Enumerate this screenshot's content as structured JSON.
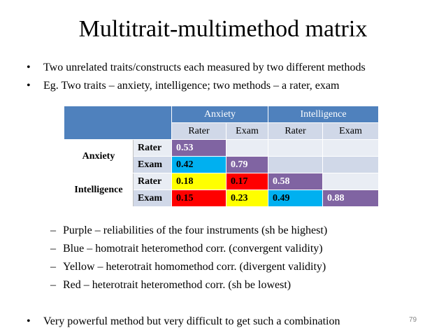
{
  "title": "Multitrait-multimethod matrix",
  "bullets": [
    "Two unrelated traits/constructs each measured by two different methods",
    "Eg. Two traits – anxiety, intelligence; two methods – a rater, exam",
    "Very powerful method but very difficult to get such a combination"
  ],
  "bullet_symbol": "•",
  "table": {
    "col_traits": [
      "Anxiety",
      "Intelligence"
    ],
    "col_methods": [
      "Rater",
      "Exam",
      "Rater",
      "Exam"
    ],
    "row_traits": [
      "Anxiety",
      "Intelligence"
    ],
    "row_methods": [
      "Rater",
      "Exam",
      "Rater",
      "Exam"
    ],
    "cells": [
      [
        "0.53",
        "",
        "",
        ""
      ],
      [
        "0.42",
        "0.79",
        "",
        ""
      ],
      [
        "0.18",
        "0.17",
        "0.58",
        ""
      ],
      [
        "0.15",
        "0.23",
        "0.49",
        "0.88"
      ]
    ],
    "cell_colors": [
      [
        "purple",
        "empty",
        "empty",
        "empty"
      ],
      [
        "blue",
        "purple",
        "empty",
        "empty"
      ],
      [
        "yellow",
        "red",
        "purple",
        "empty"
      ],
      [
        "red",
        "yellow",
        "blue",
        "purple"
      ]
    ]
  },
  "colors": {
    "purple": "#8064a2",
    "blue": "#00b0f0",
    "yellow": "#ffff00",
    "red": "#ff0000",
    "header": "#4f81bd"
  },
  "legend_symbol": "–",
  "legend": [
    "Purple – reliabilities of the four instruments (sh be highest)",
    "Blue – homotrait heteromethod corr. (convergent validity)",
    "Yellow – heterotrait homomethod corr. (divergent validity)",
    "Red – heterotrait heteromethod corr. (sh be lowest)"
  ],
  "page_number": "79"
}
